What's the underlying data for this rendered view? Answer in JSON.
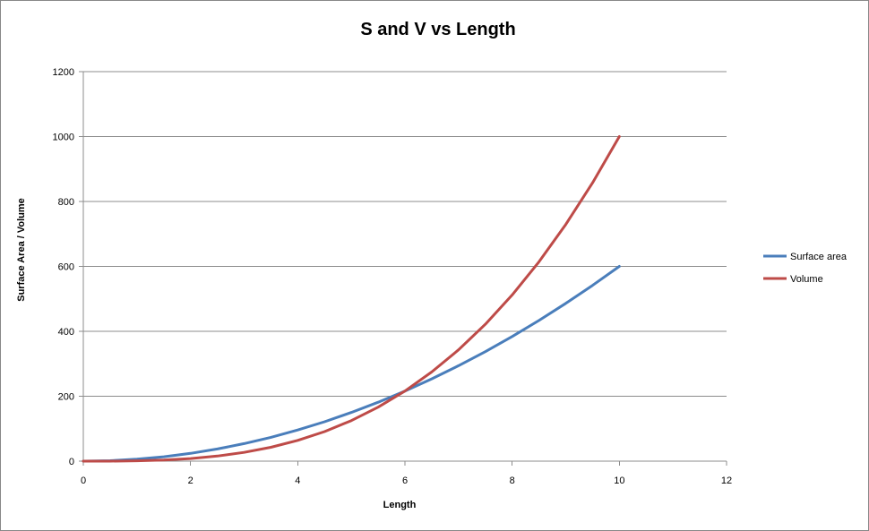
{
  "chart_data": {
    "type": "line",
    "title": "S and V vs Length",
    "xlabel": "Length",
    "ylabel": "Surface Area / Volume",
    "xlim": [
      0,
      12
    ],
    "ylim": [
      0,
      1200
    ],
    "x_ticks": [
      0,
      2,
      4,
      6,
      8,
      10,
      12
    ],
    "y_ticks": [
      0,
      200,
      400,
      600,
      800,
      1000,
      1200
    ],
    "grid": "horizontal",
    "legend_position": "right",
    "x": [
      0,
      0.5,
      1,
      1.5,
      2,
      2.5,
      3,
      3.5,
      4,
      4.5,
      5,
      5.5,
      6,
      6.5,
      7,
      7.5,
      8,
      8.5,
      9,
      9.5,
      10
    ],
    "series": [
      {
        "name": "Surface area",
        "color": "#4a7ebb",
        "values": [
          0,
          1.5,
          6,
          13.5,
          24,
          37.5,
          54,
          73.5,
          96,
          121.5,
          150,
          181.5,
          216,
          253.5,
          294,
          337.5,
          384,
          433.5,
          486,
          541.5,
          600
        ]
      },
      {
        "name": "Volume",
        "color": "#be4b48",
        "values": [
          0,
          0.125,
          1,
          3.375,
          8,
          15.625,
          27,
          42.875,
          64,
          91.125,
          125,
          166.375,
          216,
          274.625,
          343,
          421.875,
          512,
          614.125,
          729,
          857.375,
          1000
        ]
      }
    ]
  }
}
